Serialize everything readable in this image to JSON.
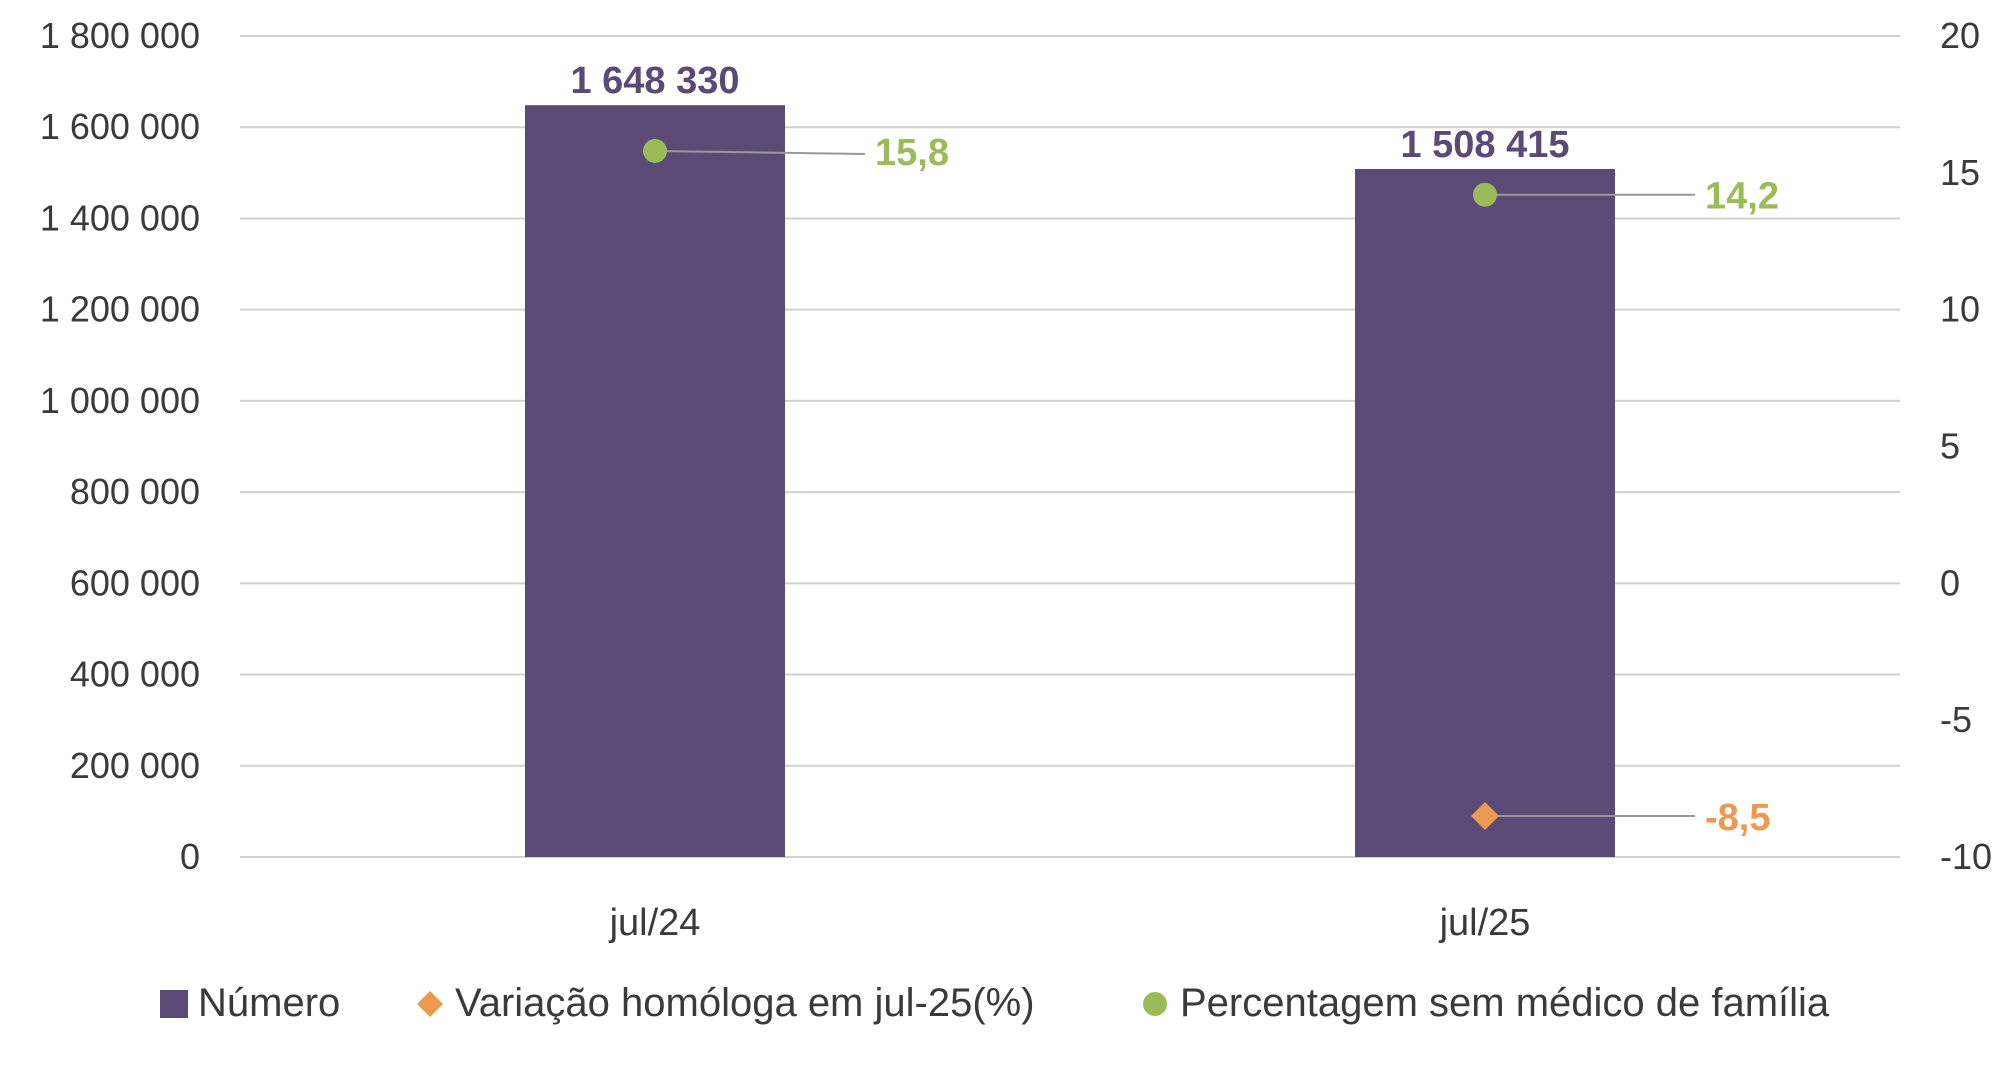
{
  "colors": {
    "bar": "#5b4a75",
    "variation": "#ed9a51",
    "percentage": "#9bbb59",
    "grid": "#d0d0d0",
    "leader": "#999999"
  },
  "chart_data": {
    "type": "bar",
    "categories": [
      "jul/24",
      "jul/25"
    ],
    "y_left": {
      "min": 0,
      "max": 1800000,
      "step": 200000,
      "ticks": [
        "0",
        "200 000",
        "400 000",
        "600 000",
        "800 000",
        "1 000 000",
        "1 200 000",
        "1 400 000",
        "1 600 000",
        "1 800 000"
      ]
    },
    "y_right": {
      "min": -10,
      "max": 20,
      "step": 5,
      "ticks": [
        "-10",
        "-5",
        "0",
        "5",
        "10",
        "15",
        "20"
      ]
    },
    "grid": true,
    "legend_position": "bottom",
    "series": [
      {
        "name": "Número",
        "kind": "bar",
        "axis": "left",
        "values": [
          1648330,
          1508415
        ],
        "labels": [
          "1 648 330",
          "1 508 415"
        ]
      },
      {
        "name": "Variação homóloga em jul-25(%)",
        "kind": "marker",
        "marker": "diamond",
        "axis": "right",
        "values": [
          null,
          -8.5
        ],
        "labels": [
          "",
          "-8,5"
        ]
      },
      {
        "name": "Percentagem sem médico de família",
        "kind": "marker",
        "marker": "circle",
        "axis": "right",
        "values": [
          15.8,
          14.2
        ],
        "labels": [
          "15,8",
          "14,2"
        ]
      }
    ]
  }
}
